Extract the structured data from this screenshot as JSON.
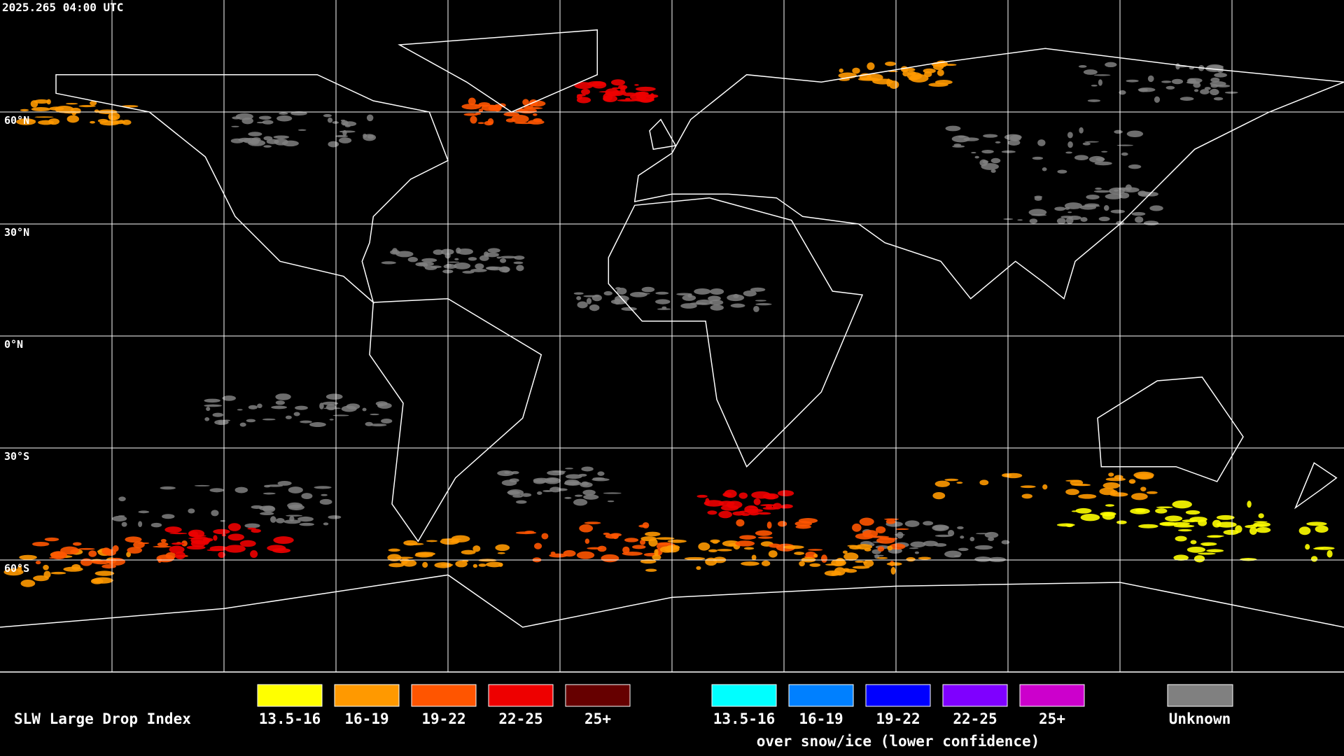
{
  "timestamp": "2025.265 04:00 UTC",
  "map": {
    "lat_labels": [
      "60°N",
      "30°N",
      "0°N",
      "30°S",
      "60°S"
    ]
  },
  "legend": {
    "title": "SLW Large Drop Index",
    "groups": [
      {
        "items": [
          {
            "label": "13.5-16",
            "color": "#ffff00"
          },
          {
            "label": "16-19",
            "color": "#ff9900"
          },
          {
            "label": "19-22",
            "color": "#ff5500"
          },
          {
            "label": "22-25",
            "color": "#ee0000"
          },
          {
            "label": "25+",
            "color": "#660000"
          }
        ]
      },
      {
        "items": [
          {
            "label": "13.5-16",
            "color": "#00ffff"
          },
          {
            "label": "16-19",
            "color": "#0080ff"
          },
          {
            "label": "19-22",
            "color": "#0000ff"
          },
          {
            "label": "22-25",
            "color": "#7f00ff"
          },
          {
            "label": "25+",
            "color": "#cc00cc"
          }
        ],
        "caption": "over snow/ice (lower confidence)"
      }
    ],
    "unknown": {
      "label": "Unknown",
      "color": "#808080"
    }
  }
}
